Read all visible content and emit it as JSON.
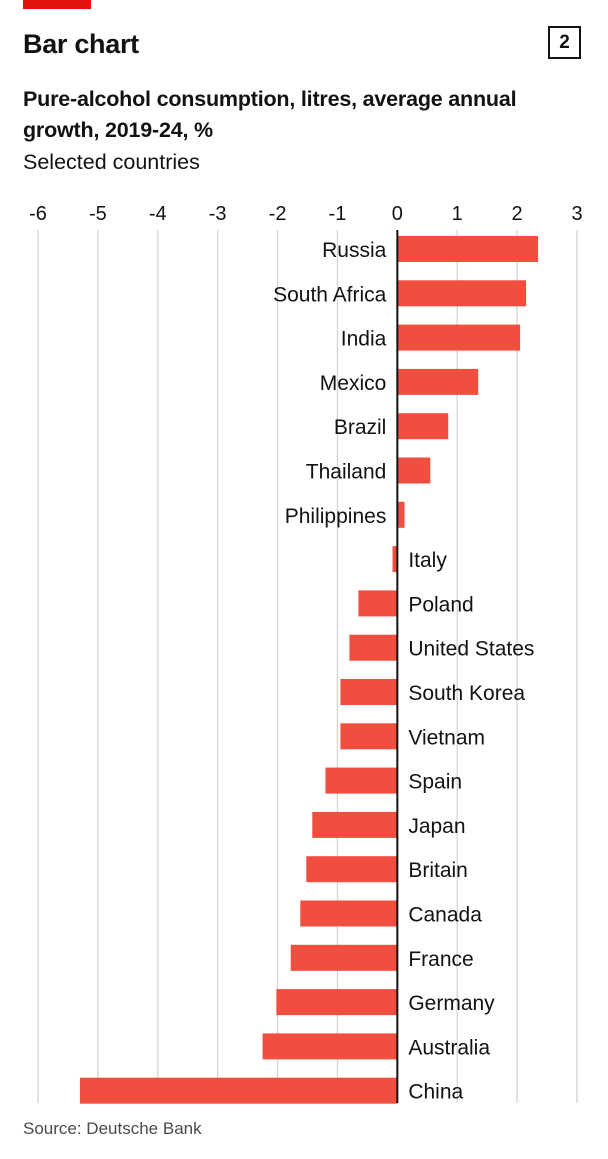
{
  "header": {
    "label": "Bar chart",
    "badge": "2",
    "accent_color": "#e3120b"
  },
  "chart_data": {
    "type": "bar",
    "orientation": "horizontal",
    "title": "Pure-alcohol consumption, litres, average annual growth, 2019-24, %",
    "subtitle": "Selected countries",
    "xlabel": "",
    "ylabel": "",
    "xlim": [
      -6,
      3
    ],
    "xticks": [
      -6,
      -5,
      -4,
      -3,
      -2,
      -1,
      0,
      1,
      2,
      3
    ],
    "xtick_labels": [
      "-6",
      "-5",
      "-4",
      "-3",
      "-2",
      "-1",
      "0",
      "1",
      "2",
      "3"
    ],
    "grid": true,
    "bar_color": "#f04e3e",
    "categories": [
      "Russia",
      "South Africa",
      "India",
      "Mexico",
      "Brazil",
      "Thailand",
      "Philippines",
      "Italy",
      "Poland",
      "United States",
      "South Korea",
      "Vietnam",
      "Spain",
      "Japan",
      "Britain",
      "Canada",
      "France",
      "Germany",
      "Australia",
      "China"
    ],
    "values": [
      2.35,
      2.15,
      2.05,
      1.35,
      0.85,
      0.55,
      0.12,
      -0.08,
      -0.65,
      -0.8,
      -0.95,
      -0.95,
      -1.2,
      -1.42,
      -1.52,
      -1.62,
      -1.78,
      -2.02,
      -2.25,
      -5.3
    ]
  },
  "source": "Source: Deutsche Bank"
}
